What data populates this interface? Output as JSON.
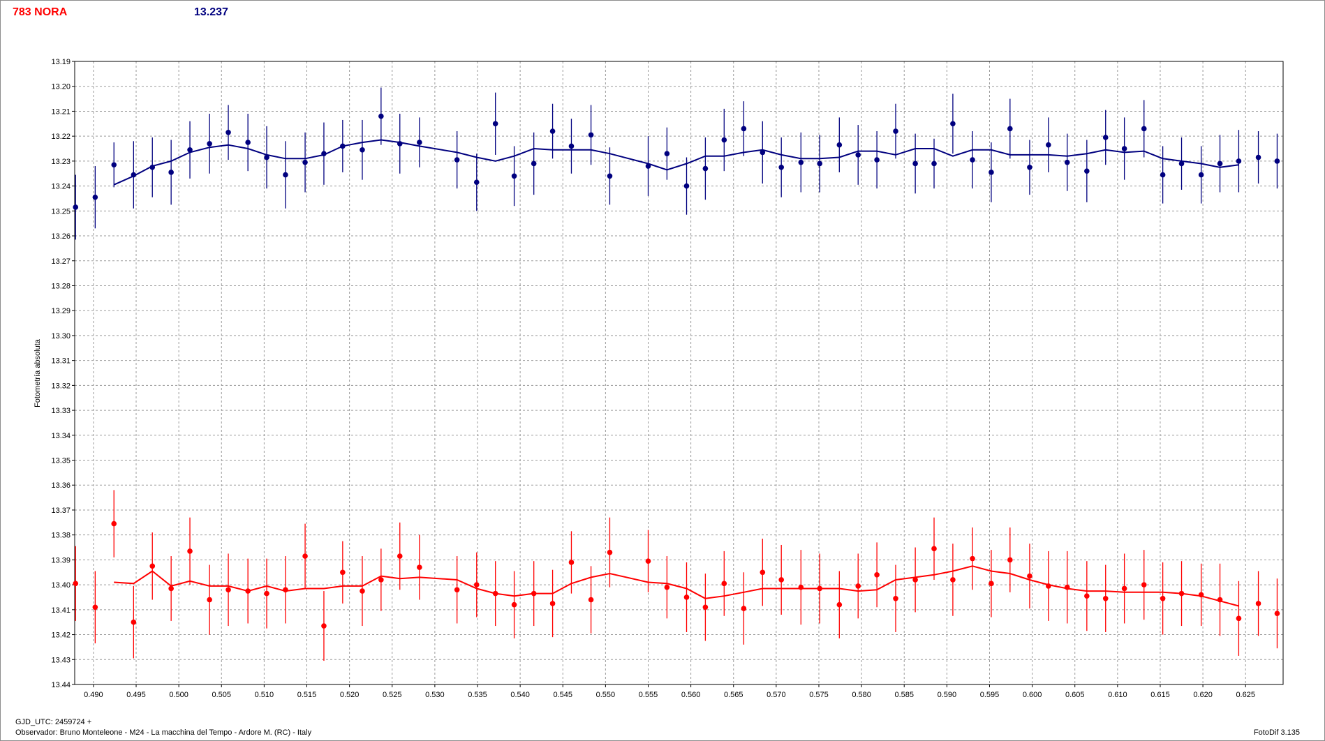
{
  "header": {
    "title": "783 NORA",
    "value": "13.237",
    "title_color": "#ff0000",
    "value_color": "#00007f"
  },
  "footer": {
    "xlabel": "GJD_UTC: 2459724 +",
    "observer": "Observador: Bruno Monteleone - M24 - La macchina del Tempo - Ardore M. (RC) - Italy",
    "software": "FotoDif 3.135"
  },
  "chart_data": {
    "type": "scatter",
    "ylabel": "Fotometría absoluta",
    "xlim": [
      0.4878,
      0.6294
    ],
    "ylim": [
      13.19,
      13.44
    ],
    "y_inverted": true,
    "grid": true,
    "x_ticks": [
      "0.490",
      "0.495",
      "0.500",
      "0.505",
      "0.510",
      "0.515",
      "0.520",
      "0.525",
      "0.530",
      "0.535",
      "0.540",
      "0.545",
      "0.550",
      "0.555",
      "0.560",
      "0.565",
      "0.570",
      "0.575",
      "0.580",
      "0.585",
      "0.590",
      "0.595",
      "0.600",
      "0.605",
      "0.610",
      "0.615",
      "0.620",
      "0.625"
    ],
    "y_ticks": [
      "13.19",
      "13.20",
      "13.21",
      "13.22",
      "13.23",
      "13.24",
      "13.25",
      "13.26",
      "13.27",
      "13.28",
      "13.29",
      "13.30",
      "13.31",
      "13.32",
      "13.33",
      "13.34",
      "13.35",
      "13.36",
      "13.37",
      "13.38",
      "13.39",
      "13.40",
      "13.41",
      "13.42",
      "13.43",
      "13.44"
    ],
    "x": [
      0.4879,
      0.4902,
      0.4924,
      0.4947,
      0.4969,
      0.4991,
      0.5013,
      0.5036,
      0.5058,
      0.5081,
      0.5103,
      0.5125,
      0.5148,
      0.517,
      0.5192,
      0.5215,
      0.5237,
      0.5259,
      0.5282,
      0.5326,
      0.5349,
      0.5371,
      0.5393,
      0.5416,
      0.5438,
      0.546,
      0.5483,
      0.5505,
      0.555,
      0.5572,
      0.5595,
      0.5617,
      0.5639,
      0.5662,
      0.5684,
      0.5706,
      0.5729,
      0.5751,
      0.5774,
      0.5796,
      0.5818,
      0.584,
      0.5863,
      0.5885,
      0.5907,
      0.593,
      0.5952,
      0.5974,
      0.5997,
      0.6019,
      0.6041,
      0.6064,
      0.6086,
      0.6108,
      0.6131,
      0.6153,
      0.6175,
      0.6198,
      0.622,
      0.6242,
      0.6265,
      0.6287
    ],
    "series": [
      {
        "color": "#00007f",
        "values": [
          13.2485,
          13.2445,
          13.2315,
          13.2355,
          13.2325,
          13.2345,
          13.2255,
          13.223,
          13.2185,
          13.2225,
          13.2285,
          13.2355,
          13.2305,
          13.227,
          13.224,
          13.2255,
          13.212,
          13.223,
          13.2225,
          13.2295,
          13.2385,
          13.215,
          13.236,
          13.231,
          13.218,
          13.224,
          13.2195,
          13.236,
          13.232,
          13.227,
          13.24,
          13.233,
          13.2215,
          13.217,
          13.2265,
          13.2325,
          13.2305,
          13.231,
          13.2235,
          13.2275,
          13.2295,
          13.218,
          13.231,
          13.231,
          13.215,
          13.2295,
          13.2345,
          13.217,
          13.2325,
          13.2235,
          13.2305,
          13.234,
          13.2205,
          13.225,
          13.217,
          13.2355,
          13.231,
          13.2355,
          13.231,
          13.23,
          13.2285,
          13.23
        ],
        "errors": [
          0.013,
          0.0125,
          0.009,
          0.0135,
          0.012,
          0.013,
          0.0115,
          0.012,
          0.011,
          0.0115,
          0.0125,
          0.0135,
          0.012,
          0.0125,
          0.0105,
          0.012,
          0.0115,
          0.012,
          0.01,
          0.0115,
          0.0115,
          0.0125,
          0.012,
          0.0125,
          0.011,
          0.011,
          0.012,
          0.0115,
          0.012,
          0.0105,
          0.0115,
          0.0125,
          0.0125,
          0.011,
          0.0125,
          0.012,
          0.012,
          0.0115,
          0.011,
          0.012,
          0.0115,
          0.011,
          0.012,
          0.01,
          0.012,
          0.0115,
          0.012,
          0.012,
          0.011,
          0.011,
          0.0115,
          0.0125,
          0.011,
          0.0125,
          0.0115,
          0.0115,
          0.0105,
          0.0115,
          0.0115,
          0.0125,
          0.0105,
          0.011
        ],
        "trend": [
          null,
          null,
          13.2395,
          13.236,
          13.232,
          13.23,
          13.2265,
          13.2245,
          13.2235,
          13.225,
          13.2275,
          13.229,
          13.229,
          13.2275,
          13.224,
          13.2225,
          13.2215,
          13.2225,
          13.224,
          13.2265,
          13.2285,
          13.23,
          13.228,
          13.225,
          13.2255,
          13.2255,
          13.2255,
          13.227,
          13.231,
          13.2335,
          13.231,
          13.228,
          13.228,
          13.2265,
          13.2255,
          13.2275,
          13.229,
          13.229,
          13.2285,
          13.226,
          13.226,
          13.2275,
          13.225,
          13.225,
          13.228,
          13.2255,
          13.2255,
          13.2275,
          13.2275,
          13.2275,
          13.228,
          13.227,
          13.2255,
          13.2265,
          13.226,
          13.229,
          13.23,
          13.231,
          13.2325,
          13.2315,
          null,
          null
        ]
      },
      {
        "color": "#ff0000",
        "values": [
          13.3995,
          13.409,
          13.3755,
          13.415,
          13.3925,
          13.4015,
          13.3865,
          13.406,
          13.402,
          13.4025,
          13.4035,
          13.402,
          13.3885,
          13.4165,
          13.395,
          13.4025,
          13.398,
          13.3885,
          13.393,
          13.402,
          13.4,
          13.4035,
          13.408,
          13.4035,
          13.4075,
          13.391,
          13.406,
          13.387,
          13.3905,
          13.401,
          13.405,
          13.409,
          13.3995,
          13.4095,
          13.395,
          13.398,
          13.401,
          13.4015,
          13.408,
          13.4005,
          13.396,
          13.4055,
          13.398,
          13.3855,
          13.398,
          13.3895,
          13.3995,
          13.39,
          13.3965,
          13.4005,
          13.401,
          13.4045,
          13.4055,
          13.4015,
          13.4,
          13.4055,
          13.4035,
          13.404,
          13.406,
          13.4135,
          13.4075,
          13.4115
        ],
        "errors": [
          0.015,
          0.0145,
          0.0135,
          0.0145,
          0.0135,
          0.013,
          0.0135,
          0.014,
          0.0145,
          0.013,
          0.014,
          0.0135,
          0.013,
          0.014,
          0.0125,
          0.014,
          0.0125,
          0.0135,
          0.013,
          0.0135,
          0.013,
          0.013,
          0.0135,
          0.013,
          0.0135,
          0.0125,
          0.0135,
          0.014,
          0.0125,
          0.0125,
          0.014,
          0.0135,
          0.013,
          0.0145,
          0.0135,
          0.014,
          0.015,
          0.014,
          0.0135,
          0.013,
          0.013,
          0.0135,
          0.013,
          0.0125,
          0.0145,
          0.0125,
          0.0135,
          0.013,
          0.013,
          0.014,
          0.0145,
          0.014,
          0.0135,
          0.014,
          0.014,
          0.0145,
          0.013,
          0.0125,
          0.0145,
          0.015,
          0.013,
          0.014
        ],
        "trend": [
          null,
          null,
          13.399,
          13.3995,
          13.3945,
          13.4005,
          13.3985,
          13.4005,
          13.4005,
          13.4025,
          13.4005,
          13.4025,
          13.4015,
          13.4015,
          13.4005,
          13.4005,
          13.3965,
          13.3975,
          13.397,
          13.398,
          13.4015,
          13.4035,
          13.4045,
          13.4035,
          13.4035,
          13.3995,
          13.397,
          13.3955,
          13.399,
          13.3995,
          13.4015,
          13.4055,
          13.4045,
          13.403,
          13.4015,
          13.4015,
          13.4015,
          13.4015,
          13.4015,
          13.4025,
          13.402,
          13.398,
          13.397,
          13.396,
          13.3945,
          13.3925,
          13.3945,
          13.3955,
          13.398,
          13.4,
          13.4015,
          13.4025,
          13.4025,
          13.403,
          13.403,
          13.403,
          13.4035,
          13.4045,
          13.4065,
          13.4085,
          null,
          null
        ]
      }
    ]
  }
}
